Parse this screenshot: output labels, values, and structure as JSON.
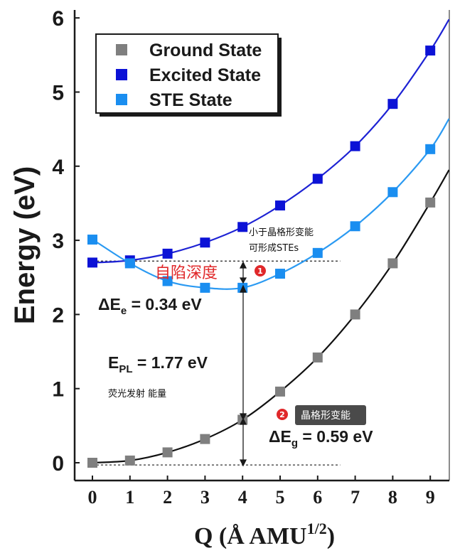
{
  "chart_data": {
    "type": "scatter",
    "xlabel": "Q (Å AMU",
    "xlabel_sup": "1/2",
    "xlabel_close": ")",
    "ylabel": "Energy (eV)",
    "xlim": [
      -0.4,
      9.5
    ],
    "ylim": [
      -0.25,
      6.0
    ],
    "x_ticks": [
      0,
      1,
      2,
      3,
      4,
      5,
      6,
      7,
      8,
      9
    ],
    "y_ticks": [
      0,
      1,
      2,
      3,
      4,
      5,
      6
    ],
    "grid": false,
    "legend_position": "top-left",
    "x": [
      0,
      1,
      2,
      3,
      4,
      5,
      6,
      7,
      8,
      9
    ],
    "series": [
      {
        "name": "Ground State",
        "color": "#7f7f7f",
        "marker": "square",
        "values": [
          0.0,
          0.03,
          0.14,
          0.32,
          0.58,
          0.96,
          1.42,
          2.0,
          2.69,
          3.51
        ],
        "fit": [
          [
            -0.1,
            0.0
          ],
          [
            9.5,
            3.95
          ]
        ]
      },
      {
        "name": "Excited State",
        "color": "#0c12d6",
        "marker": "square",
        "values": [
          2.7,
          2.73,
          2.82,
          2.97,
          3.18,
          3.47,
          3.83,
          4.27,
          4.84,
          5.56
        ],
        "fit": [
          [
            -0.1,
            2.72
          ],
          [
            9.5,
            5.98
          ]
        ]
      },
      {
        "name": "STE State",
        "color": "#1a8ef0",
        "marker": "square",
        "values": [
          3.01,
          2.69,
          2.45,
          2.36,
          2.36,
          2.55,
          2.83,
          3.19,
          3.65,
          4.23
        ],
        "fit": [
          [
            -0.1,
            3.0
          ],
          [
            9.5,
            4.64
          ]
        ]
      }
    ],
    "annotations": {
      "delta_e": {
        "main": "ΔE",
        "sub": "e",
        "rest": " = 0.34 eV"
      },
      "e_pl": {
        "main": "E",
        "sub": "PL",
        "rest": " = 1.77 eV"
      },
      "delta_g": {
        "main": "ΔE",
        "sub": "g",
        "rest": " = 0.59 eV"
      },
      "note_line1": "小于晶格形变能",
      "note_line2": "可形成STEs",
      "self_trap_label": "自陷深度",
      "badge1": "1",
      "pl_note": "荧光发射 能量",
      "badge2": "2",
      "lattice_tag": "晶格形变能"
    }
  }
}
